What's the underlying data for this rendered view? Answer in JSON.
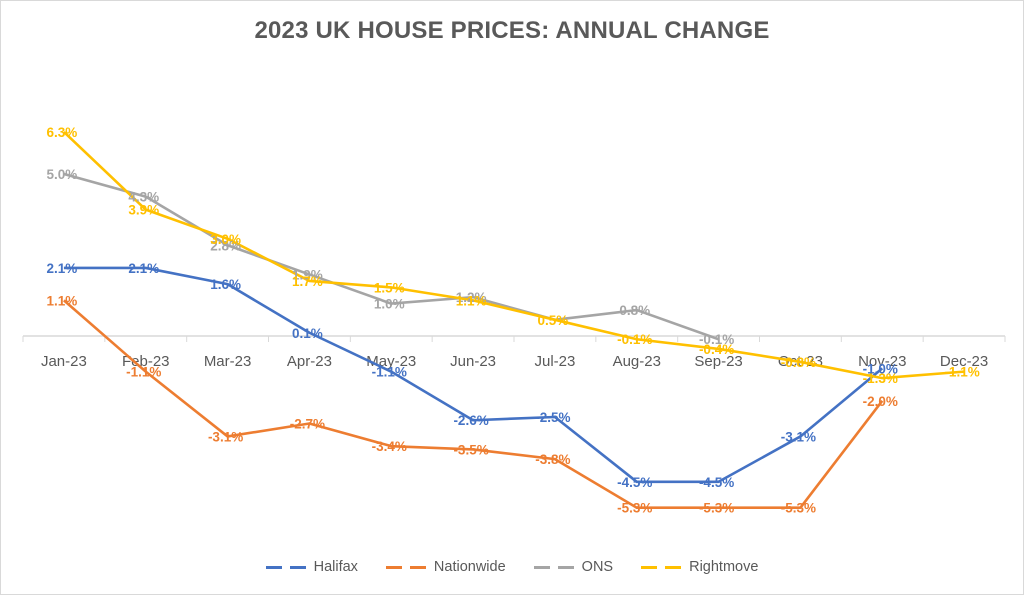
{
  "chart_data": {
    "type": "line",
    "title": "2023 UK HOUSE PRICES: ANNUAL CHANGE",
    "xlabel": "",
    "ylabel": "",
    "categories": [
      "Jan-23",
      "Feb-23",
      "Mar-23",
      "Apr-23",
      "May-23",
      "Jun-23",
      "Jul-23",
      "Aug-23",
      "Sep-23",
      "Oct-23",
      "Nov-23",
      "Dec-23"
    ],
    "ylim": [
      -6,
      7
    ],
    "grid": false,
    "legend_position": "bottom",
    "series": [
      {
        "name": "Halifax",
        "color": "#4472C4",
        "values": [
          2.1,
          2.1,
          1.6,
          0.1,
          -1.1,
          -2.6,
          -2.5,
          -4.5,
          -4.5,
          -3.1,
          -1.0,
          null
        ],
        "labels": [
          "2.1%",
          "2.1%",
          "1.6%",
          "0.1%",
          "-1.1%",
          "-2.6%",
          "-2.5%",
          "-4.5%",
          "-4.5%",
          "-3.1%",
          "-1.0%",
          null
        ]
      },
      {
        "name": "Nationwide",
        "color": "#ED7D31",
        "values": [
          1.1,
          -1.1,
          -3.1,
          -2.7,
          -3.4,
          -3.5,
          -3.8,
          -5.3,
          -5.3,
          -5.3,
          -2.0,
          null
        ],
        "labels": [
          "1.1%",
          "-1.1%",
          "-3.1%",
          "-2.7%",
          "-3.4%",
          "-3.5%",
          "-3.8%",
          "-5.3%",
          "-5.3%",
          "-5.3%",
          "-2.0%",
          null
        ]
      },
      {
        "name": "ONS",
        "color": "#A5A5A5",
        "values": [
          5.0,
          4.3,
          2.8,
          1.9,
          1.0,
          1.2,
          0.5,
          0.8,
          -0.1,
          null,
          null,
          null
        ],
        "labels": [
          "5.0%",
          "4.3%",
          "2.8%",
          "1.9%",
          "1.0%",
          "1.2%",
          null,
          "0.8%",
          "-0.1%",
          null,
          null,
          null
        ]
      },
      {
        "name": "Rightmove",
        "color": "#FFC000",
        "values": [
          6.3,
          3.9,
          3.0,
          1.7,
          1.5,
          1.1,
          0.5,
          -0.1,
          -0.4,
          -0.8,
          -1.3,
          -1.1
        ],
        "labels": [
          "6.3%",
          "3.9%",
          "3.0%",
          "1.7%",
          "1.5%",
          "1.1%",
          "0.5%",
          "-0.1%",
          "-0.4%",
          "-0.8%",
          "-1.3%",
          "-1.1%"
        ]
      }
    ],
    "axis_color": "#D9D9D9",
    "text_color": "#595959"
  }
}
